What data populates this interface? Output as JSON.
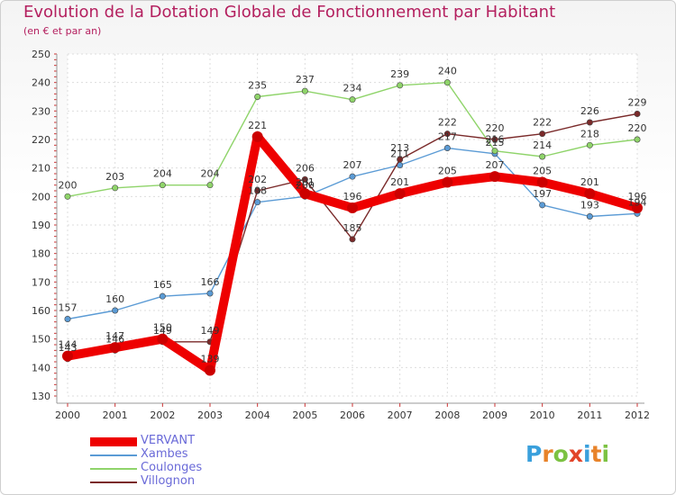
{
  "header": {
    "title": "Evolution de la Dotation Globale de Fonctionnement par Habitant",
    "subtitle": "(en € et par an)"
  },
  "logo": {
    "letters": [
      "P",
      "r",
      "o",
      "x",
      "i",
      "t",
      "i"
    ],
    "colors": [
      "#3aa0dc",
      "#e8832a",
      "#7cc242",
      "#e2452a",
      "#3aa0dc",
      "#e8832a",
      "#7cc242"
    ]
  },
  "chart_data": {
    "type": "line",
    "title": "Evolution de la Dotation Globale de Fonctionnement par Habitant",
    "subtitle": "(en € et par an)",
    "xlabel": "",
    "ylabel": "",
    "ylim": [
      130,
      250
    ],
    "yticks": [
      130,
      140,
      150,
      160,
      170,
      180,
      190,
      200,
      210,
      220,
      230,
      240,
      250
    ],
    "grid": true,
    "legend_position": "bottom-left",
    "categories": [
      "2000",
      "2001",
      "2002",
      "2003",
      "2004",
      "2005",
      "2006",
      "2007",
      "2008",
      "2009",
      "2010",
      "2011",
      "2012"
    ],
    "series": [
      {
        "name": "VERVANT",
        "color": "#ee0000",
        "values": [
          144,
          147,
          150,
          139,
          221,
          201,
          196,
          201,
          205,
          207,
          205,
          201,
          196
        ]
      },
      {
        "name": "Xambes",
        "color": "#5b9bd5",
        "values": [
          157,
          160,
          165,
          166,
          198,
          200,
          207,
          211,
          217,
          215,
          197,
          193,
          194
        ]
      },
      {
        "name": "Coulonges",
        "color": "#8fd46a",
        "values": [
          200,
          203,
          204,
          204,
          235,
          237,
          234,
          239,
          240,
          216,
          214,
          218,
          220
        ]
      },
      {
        "name": "Villognon",
        "color": "#7a2a2a",
        "values": [
          143,
          146,
          149,
          149,
          202,
          206,
          185,
          213,
          222,
          220,
          222,
          226,
          229
        ]
      }
    ]
  }
}
